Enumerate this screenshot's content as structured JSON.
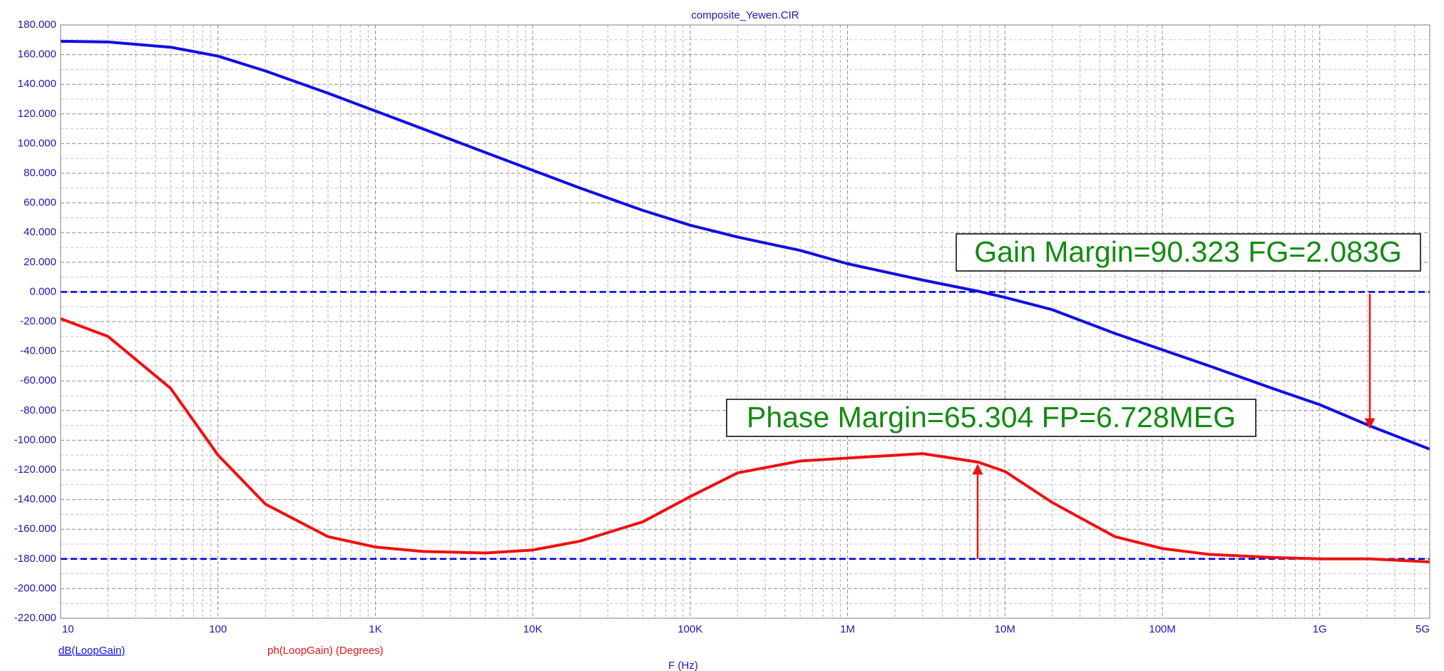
{
  "chart_data": {
    "type": "line",
    "title": "composite_Yewen.CIR",
    "x_label": "F (Hz)",
    "log_x": true,
    "grid": true,
    "xlim": [
      10,
      5000000000
    ],
    "ylim": [
      -220,
      180
    ],
    "xticks": [
      {
        "value": 10,
        "label": "10"
      },
      {
        "value": 100,
        "label": "100"
      },
      {
        "value": 1000,
        "label": "1K"
      },
      {
        "value": 10000,
        "label": "10K"
      },
      {
        "value": 100000,
        "label": "100K"
      },
      {
        "value": 1000000,
        "label": "1M"
      },
      {
        "value": 10000000,
        "label": "10M"
      },
      {
        "value": 100000000,
        "label": "100M"
      },
      {
        "value": 1000000000,
        "label": "1G"
      },
      {
        "value": 5000000000,
        "label": "5G"
      }
    ],
    "yticks": [
      {
        "value": 180,
        "label": "180.000"
      },
      {
        "value": 160,
        "label": "160.000"
      },
      {
        "value": 140,
        "label": "140.000"
      },
      {
        "value": 120,
        "label": "120.000"
      },
      {
        "value": 100,
        "label": "100.000"
      },
      {
        "value": 80,
        "label": "80.000"
      },
      {
        "value": 60,
        "label": "60.000"
      },
      {
        "value": 40,
        "label": "40.000"
      },
      {
        "value": 20,
        "label": "20.000"
      },
      {
        "value": 0,
        "label": "0.000"
      },
      {
        "value": -20,
        "label": "-20.000"
      },
      {
        "value": -40,
        "label": "-40.000"
      },
      {
        "value": -60,
        "label": "-60.000"
      },
      {
        "value": -80,
        "label": "-80.000"
      },
      {
        "value": -100,
        "label": "-100.000"
      },
      {
        "value": -120,
        "label": "-120.000"
      },
      {
        "value": -140,
        "label": "-140.000"
      },
      {
        "value": -160,
        "label": "-160.000"
      },
      {
        "value": -180,
        "label": "-180.000"
      },
      {
        "value": -200,
        "label": "-200.000"
      },
      {
        "value": -220,
        "label": "-220.000"
      }
    ],
    "reference_lines": [
      {
        "value": 0,
        "color": "#0000dd"
      },
      {
        "value": -180,
        "color": "#0000dd"
      }
    ],
    "x": [
      10,
      20,
      50,
      100,
      200,
      500,
      1000,
      2000,
      5000,
      10000,
      20000,
      50000,
      100000,
      200000,
      500000,
      1000000,
      3000000,
      6728000,
      10000000,
      20000000,
      50000000,
      100000000,
      200000000,
      500000000,
      1000000000,
      2083000000,
      5000000000
    ],
    "series": [
      {
        "name": "dB(LoopGain)",
        "color": "#1010e0",
        "values": [
          169,
          168.5,
          165,
          159,
          149,
          134,
          122,
          110,
          94,
          82,
          70,
          55,
          45,
          37,
          28,
          19,
          8,
          0.5,
          -3.7,
          -12,
          -28,
          -39,
          -50,
          -65,
          -76,
          -90.3,
          -106
        ]
      },
      {
        "name": "ph(LoopGain) (Degrees)",
        "color": "#ee1111",
        "values": [
          -18,
          -30,
          -65,
          -110,
          -143,
          -165,
          -172,
          -175,
          -176,
          -174,
          -168,
          -155,
          -138,
          -122,
          -114,
          -112,
          -109,
          -114.7,
          -121,
          -142,
          -165,
          -173,
          -177,
          -179,
          -180,
          -180,
          -182
        ]
      }
    ],
    "annotations": [
      {
        "text": "Gain Margin=90.323 FG=2.083G"
      },
      {
        "text": "Phase Margin=65.304 FP=6.728MEG"
      }
    ]
  }
}
